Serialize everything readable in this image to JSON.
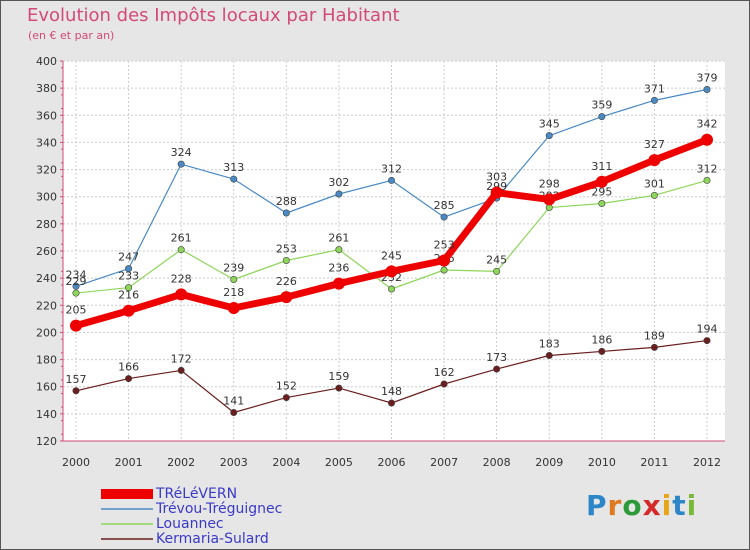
{
  "chart_data": {
    "type": "line",
    "title": "Evolution des Impôts locaux par Habitant",
    "subtitle": "(en € et par an)",
    "x": [
      2000,
      2001,
      2002,
      2003,
      2004,
      2005,
      2006,
      2007,
      2008,
      2009,
      2010,
      2011,
      2012
    ],
    "ylim": [
      120,
      400
    ],
    "yticks": [
      120,
      140,
      160,
      180,
      200,
      220,
      240,
      260,
      280,
      300,
      320,
      340,
      360,
      380,
      400
    ],
    "grid": true,
    "legend_position": "bottom-left",
    "series": [
      {
        "name": "Trévou-Tréguignec",
        "color": "#4a8ac4",
        "values": [
          234,
          247,
          324,
          313,
          288,
          302,
          312,
          285,
          299,
          345,
          359,
          371,
          379
        ]
      },
      {
        "name": "Louannec",
        "color": "#8ed65a",
        "values": [
          229,
          233,
          261,
          239,
          253,
          261,
          232,
          246,
          245,
          292,
          295,
          301,
          312
        ]
      },
      {
        "name": "Kermaria-Sulard",
        "color": "#6a1e1e",
        "values": [
          157,
          166,
          172,
          141,
          152,
          159,
          148,
          162,
          173,
          183,
          186,
          189,
          194
        ]
      },
      {
        "name": "TRéLéVERN",
        "color": "#ee0000",
        "values": [
          205,
          216,
          228,
          218,
          226,
          236,
          245,
          253,
          303,
          298,
          311,
          327,
          342
        ]
      }
    ],
    "legend_order": [
      "TRéLéVERN",
      "Trévou-Tréguignec",
      "Louannec",
      "Kermaria-Sulard"
    ]
  },
  "logo": {
    "text": "Proxiti"
  }
}
